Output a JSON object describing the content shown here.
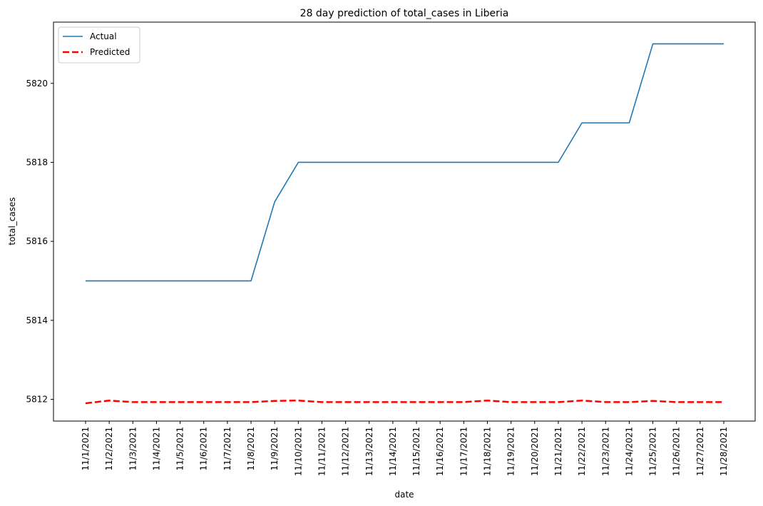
{
  "chart_data": {
    "type": "line",
    "title": "28 day prediction of total_cases in Liberia",
    "xlabel": "date",
    "ylabel": "total_cases",
    "ylim": [
      5811.45,
      5821.55
    ],
    "yticks": [
      5812,
      5814,
      5816,
      5818,
      5820
    ],
    "grid": false,
    "legend_position": "top-left",
    "x": [
      "11/1/2021",
      "11/2/2021",
      "11/3/2021",
      "11/4/2021",
      "11/5/2021",
      "11/6/2021",
      "11/7/2021",
      "11/8/2021",
      "11/9/2021",
      "11/10/2021",
      "11/11/2021",
      "11/12/2021",
      "11/13/2021",
      "11/14/2021",
      "11/15/2021",
      "11/16/2021",
      "11/17/2021",
      "11/18/2021",
      "11/19/2021",
      "11/20/2021",
      "11/21/2021",
      "11/22/2021",
      "11/23/2021",
      "11/24/2021",
      "11/25/2021",
      "11/26/2021",
      "11/27/2021",
      "11/28/2021"
    ],
    "series": [
      {
        "name": "Actual",
        "color": "#1f77b4",
        "style": "solid",
        "values": [
          5815,
          5815,
          5815,
          5815,
          5815,
          5815,
          5815,
          5815,
          5817,
          5818,
          5818,
          5818,
          5818,
          5818,
          5818,
          5818,
          5818,
          5818,
          5818,
          5818,
          5818,
          5819,
          5819,
          5819,
          5821,
          5821,
          5821,
          5821
        ]
      },
      {
        "name": "Predicted",
        "color": "#ff0000",
        "style": "dashed",
        "values": [
          5811.9,
          5811.97,
          5811.93,
          5811.93,
          5811.93,
          5811.93,
          5811.93,
          5811.93,
          5811.96,
          5811.97,
          5811.93,
          5811.93,
          5811.93,
          5811.93,
          5811.93,
          5811.93,
          5811.93,
          5811.97,
          5811.93,
          5811.93,
          5811.93,
          5811.97,
          5811.93,
          5811.93,
          5811.96,
          5811.93,
          5811.93,
          5811.93
        ]
      }
    ]
  }
}
